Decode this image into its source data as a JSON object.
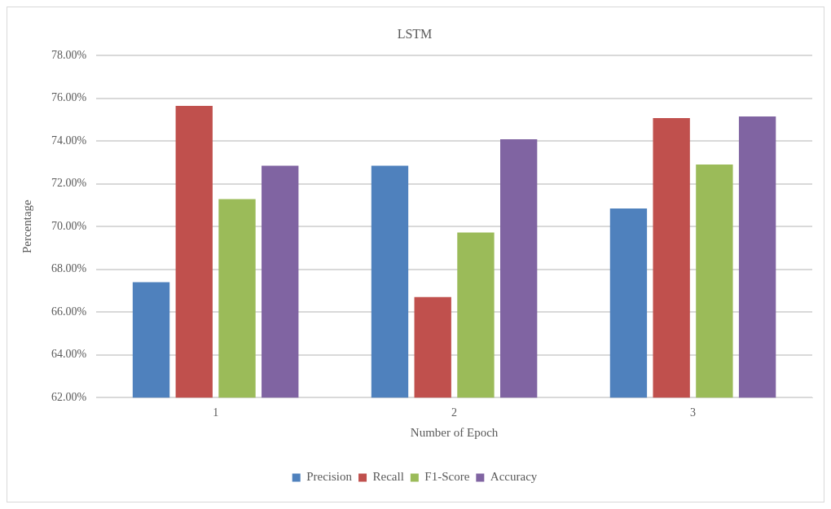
{
  "chart_data": {
    "type": "bar",
    "title": "LSTM",
    "xlabel": "Number of Epoch",
    "ylabel": "Percentage",
    "categories": [
      "1",
      "2",
      "3"
    ],
    "series": [
      {
        "name": "Precision",
        "color": "#4f81bd",
        "values": [
          67.4,
          72.85,
          70.85
        ]
      },
      {
        "name": "Recall",
        "color": "#c0504d",
        "values": [
          75.65,
          66.7,
          75.07
        ]
      },
      {
        "name": "F1-Score",
        "color": "#9bbb59",
        "values": [
          71.28,
          69.72,
          72.9
        ]
      },
      {
        "name": "Accuracy",
        "color": "#8064a2",
        "values": [
          72.85,
          74.08,
          75.15
        ]
      }
    ],
    "ylim": [
      62,
      78
    ],
    "yticks": [
      {
        "value": 62,
        "label": "62.00%"
      },
      {
        "value": 64,
        "label": "64.00%"
      },
      {
        "value": 66,
        "label": "66.00%"
      },
      {
        "value": 68,
        "label": "68.00%"
      },
      {
        "value": 70,
        "label": "70.00%"
      },
      {
        "value": 72,
        "label": "72.00%"
      },
      {
        "value": 74,
        "label": "74.00%"
      },
      {
        "value": 76,
        "label": "76.00%"
      },
      {
        "value": 78,
        "label": "78.00%"
      }
    ],
    "grid": "y",
    "legend": "bottom"
  }
}
